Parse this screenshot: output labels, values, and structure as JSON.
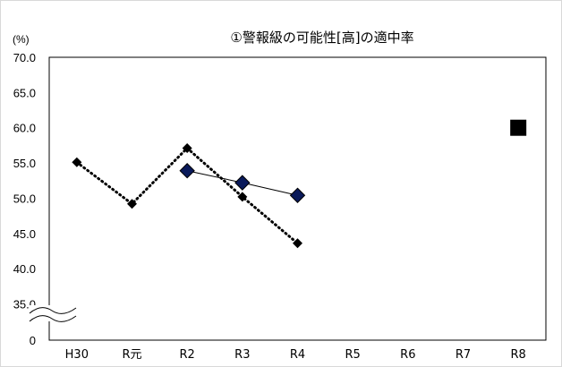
{
  "chart_data": {
    "type": "line",
    "title": "①警報級の可能性[高]の適中率",
    "unit_label": "(%)",
    "categories": [
      "H30",
      "R元",
      "R2",
      "R3",
      "R4",
      "R5",
      "R6",
      "R7",
      "R8"
    ],
    "y_ticks": [
      "70.0",
      "65.0",
      "60.0",
      "55.0",
      "50.0",
      "45.0",
      "40.0",
      "35.0",
      "0"
    ],
    "ylim": [
      35,
      70
    ],
    "axis_break": true,
    "grid": false,
    "series": [
      {
        "x": [
          "H30",
          "R元",
          "R2",
          "R3",
          "R4"
        ],
        "values": [
          55.1,
          49.2,
          57.1,
          50.2,
          43.6
        ],
        "style": "dotted",
        "marker": "small-diamond",
        "color": "#000000"
      },
      {
        "x": [
          "R2",
          "R3",
          "R4"
        ],
        "values": [
          53.9,
          52.2,
          50.4
        ],
        "style": "solid",
        "marker": "large-diamond",
        "color": "#0a1a5a"
      },
      {
        "x": [
          "R8"
        ],
        "values": [
          60.0
        ],
        "style": "none",
        "marker": "square",
        "color": "#000000"
      }
    ]
  }
}
